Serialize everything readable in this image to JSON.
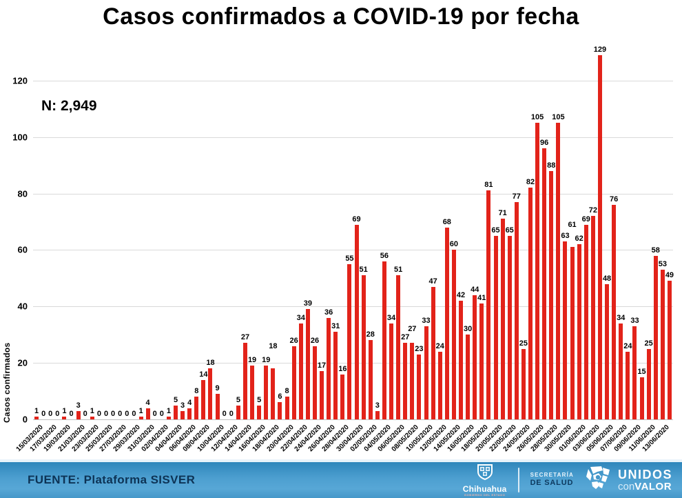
{
  "title": "Casos confirmados a COVID-19 por fecha",
  "n_label": "N: 2,949",
  "chart_data": {
    "type": "bar",
    "title": "Casos confirmados a COVID-19 por fecha",
    "annotation": "N: 2,949",
    "ylabel": "Casos confirmados",
    "xlabel": "",
    "ylim": [
      0,
      140
    ],
    "yticks": [
      0,
      20,
      40,
      60,
      80,
      100,
      120,
      140
    ],
    "grid": true,
    "legend": "none",
    "bar_color": "#e2231a",
    "xtick_every": 2,
    "x": [
      "15/03/2020",
      "16/03/2020",
      "17/03/2020",
      "18/03/2020",
      "19/03/2020",
      "20/03/2020",
      "21/03/2020",
      "22/03/2020",
      "23/03/2020",
      "24/03/2020",
      "25/03/2020",
      "26/03/2020",
      "27/03/2020",
      "28/03/2020",
      "29/03/2020",
      "30/03/2020",
      "31/03/2020",
      "01/04/2020",
      "02/04/2020",
      "03/04/2020",
      "04/04/2020",
      "05/04/2020",
      "06/04/2020",
      "07/04/2020",
      "08/04/2020",
      "09/04/2020",
      "10/04/2020",
      "11/04/2020",
      "12/04/2020",
      "13/04/2020",
      "14/04/2020",
      "15/04/2020",
      "16/04/2020",
      "17/04/2020",
      "18/04/2020",
      "19/04/2020",
      "20/04/2020",
      "21/04/2020",
      "22/04/2020",
      "23/04/2020",
      "24/04/2020",
      "25/04/2020",
      "26/04/2020",
      "27/04/2020",
      "28/04/2020",
      "29/04/2020",
      "30/04/2020",
      "01/05/2020",
      "02/05/2020",
      "03/05/2020",
      "04/05/2020",
      "05/05/2020",
      "06/05/2020",
      "07/05/2020",
      "08/05/2020",
      "09/05/2020",
      "10/05/2020",
      "11/05/2020",
      "12/05/2020",
      "13/05/2020",
      "14/05/2020",
      "15/05/2020",
      "16/05/2020",
      "17/05/2020",
      "18/05/2020",
      "19/05/2020",
      "20/05/2020",
      "21/05/2020",
      "22/05/2020",
      "23/05/2020",
      "24/05/2020",
      "25/05/2020",
      "26/05/2020",
      "27/05/2020",
      "28/05/2020",
      "29/05/2020",
      "30/05/2020",
      "31/05/2020",
      "01/06/2020",
      "02/06/2020",
      "03/06/2020",
      "04/06/2020",
      "05/06/2020",
      "06/06/2020",
      "07/06/2020",
      "08/06/2020",
      "09/06/2020",
      "10/06/2020",
      "11/06/2020",
      "12/06/2020",
      "13/06/2020",
      "14/06/2020"
    ],
    "values": [
      1,
      0,
      0,
      0,
      1,
      0,
      3,
      0,
      1,
      0,
      0,
      0,
      0,
      0,
      0,
      1,
      4,
      0,
      0,
      1,
      5,
      3,
      4,
      8,
      14,
      18,
      9,
      0,
      0,
      5,
      27,
      19,
      5,
      19,
      18,
      6,
      8,
      26,
      34,
      39,
      26,
      17,
      36,
      31,
      16,
      55,
      69,
      51,
      28,
      3,
      56,
      34,
      51,
      27,
      27,
      23,
      33,
      47,
      24,
      68,
      60,
      42,
      30,
      44,
      41,
      81,
      65,
      71,
      65,
      77,
      25,
      82,
      105,
      96,
      88,
      105,
      63,
      61,
      62,
      69,
      72,
      129,
      48,
      76,
      34,
      24,
      33,
      15,
      25,
      58,
      53,
      49
    ],
    "total": 2949
  },
  "footer": {
    "source": "FUENTE: Plataforma SISVER",
    "logos": {
      "chihuahua": {
        "name": "Chihuahua",
        "subtitle": "GOBIERNO DEL ESTADO"
      },
      "salud": {
        "line1": "SECRETARÍA",
        "line2": "DE SALUD"
      },
      "unidos": {
        "line1": "UNIDOS",
        "line2a": "con",
        "line2b": "VALOR"
      }
    }
  },
  "colors": {
    "bar": "#e2231a",
    "gridline": "#d9d9d9",
    "footer_text": "#0d3355",
    "footer_blue_top": "#2e86bb",
    "footer_blue_bottom": "#57a7d6"
  }
}
